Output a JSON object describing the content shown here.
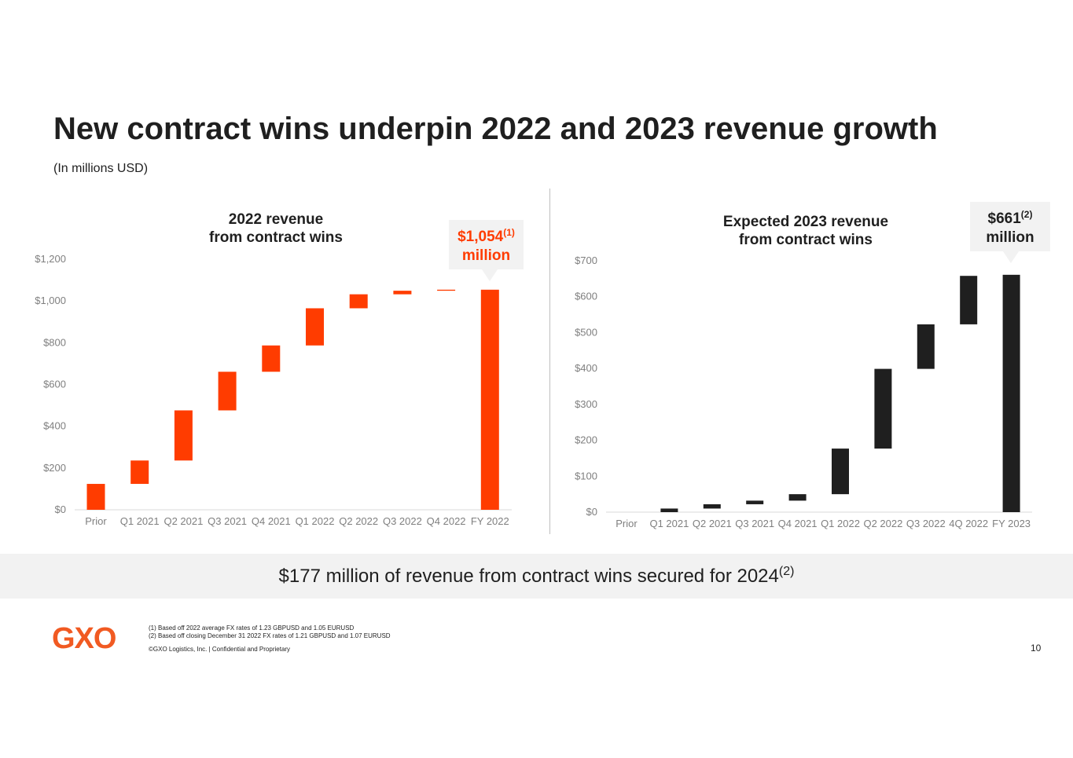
{
  "title": "New contract wins underpin 2022 and 2023 revenue growth",
  "subtitle": "(In millions USD)",
  "chart_data": [
    {
      "type": "waterfall",
      "title": "2022 revenue from contract wins",
      "title_lines": [
        "2022 revenue",
        "from contract wins"
      ],
      "color": "#ff3c00",
      "categories": [
        "Prior",
        "Q1 2021",
        "Q2 2021",
        "Q3 2021",
        "Q4 2021",
        "Q1 2022",
        "Q2 2022",
        "Q3 2022",
        "Q4 2022",
        "FY 2022"
      ],
      "increments": [
        124,
        112,
        240,
        185,
        126,
        178,
        67,
        17,
        5
      ],
      "total": 1054,
      "ylim": [
        0,
        1200
      ],
      "yticks": [
        0,
        200,
        400,
        600,
        800,
        1000,
        1200
      ],
      "ytick_labels": [
        "$0",
        "$200",
        "$400",
        "$600",
        "$800",
        "$1,000",
        "$1,200"
      ],
      "callout": {
        "value": "$1,054",
        "sup": "(1)",
        "unit": "million",
        "color": "#ff3c00"
      }
    },
    {
      "type": "waterfall",
      "title": "Expected 2023 revenue from contract wins",
      "title_lines": [
        "Expected 2023 revenue",
        "from contract wins"
      ],
      "color": "#1f1f1f",
      "categories": [
        "Prior",
        "Q1 2021",
        "Q2 2021",
        "Q3 2021",
        "Q4 2021",
        "Q1 2022",
        "Q2 2022",
        "Q3 2022",
        "4Q 2022",
        "FY 2023"
      ],
      "increments": [
        0,
        10,
        12,
        10,
        18,
        127,
        222,
        124,
        135
      ],
      "total": 661,
      "ylim": [
        0,
        700
      ],
      "yticks": [
        0,
        100,
        200,
        300,
        400,
        500,
        600,
        700
      ],
      "ytick_labels": [
        "$0",
        "$100",
        "$200",
        "$300",
        "$400",
        "$500",
        "$600",
        "$700"
      ],
      "callout": {
        "value": "$661",
        "sup": "(2)",
        "unit": "million",
        "color": "#1f1f1f"
      }
    }
  ],
  "banner": {
    "text": "$177 million of revenue from contract wins secured for 2024",
    "sup": "(2)"
  },
  "logo": "GXO",
  "footnotes": [
    "(1) Based off 2022 average FX rates of 1.23 GBPUSD and 1.05 EURUSD",
    "(2) Based off closing December 31 2022 FX rates of 1.21 GBPUSD and 1.07 EURUSD"
  ],
  "copyright": "©GXO Logistics, Inc. | Confidential and Proprietary",
  "page_number": "10",
  "colors": {
    "accent": "#ff3c00",
    "dark": "#1f1f1f",
    "banner_bg": "#f2f2f2",
    "callout_bg": "#f2f2f2"
  }
}
